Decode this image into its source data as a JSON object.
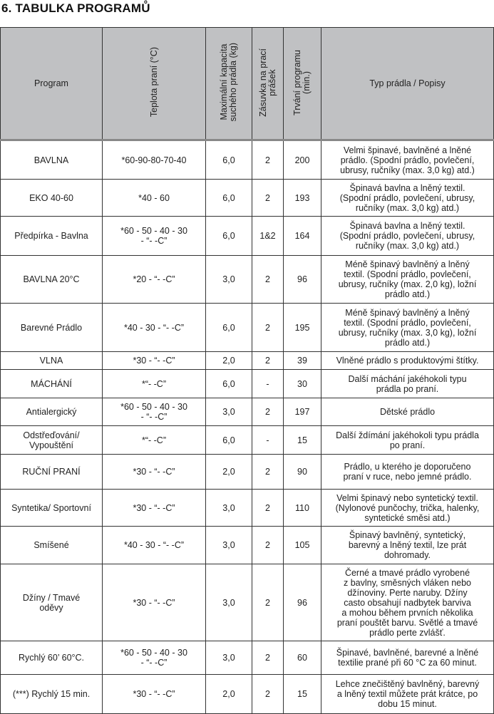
{
  "title": "6. TABULKA PROGRAMŮ",
  "columns": [
    "Program",
    "Teplota praní (°C)",
    "Maximální kapacita\nsuchého prádla (kg)",
    "Zásuvka na prací\nprášek",
    "Trvání programu\n(min.)",
    "Typ prádla / Popisy"
  ],
  "rows": [
    {
      "program": "BAVLNA",
      "temp": "*60-90-80-70-40",
      "capacity": "6,0",
      "drawer": "2",
      "duration": "200",
      "desc": "Velmi špinavé, bavlněné a lněné\nprádlo. (Spodní prádlo, povlečení,\nubrusy, ručníky (max. 3,0 kg) atd.)"
    },
    {
      "program": "EKO 40-60",
      "temp": "*40 - 60",
      "capacity": "6,0",
      "drawer": "2",
      "duration": "193",
      "desc": "Špinavá bavlna a lněný textil.\n(Spodní prádlo, povlečení, ubrusy,\nručníky (max. 3,0 kg) atd.)"
    },
    {
      "program": "Předpírka - Bavlna",
      "temp": "*60 - 50 - 40 - 30\n- “- -C”",
      "capacity": "6,0",
      "drawer": "1&2",
      "duration": "164",
      "desc": "Špinavá bavlna a lněný textil.\n(Spodní prádlo, povlečení, ubrusy,\nručníky (max. 3,0 kg) atd.)"
    },
    {
      "program": "BAVLNA 20°C",
      "temp": "*20 - “- -C”",
      "capacity": "3,0",
      "drawer": "2",
      "duration": "96",
      "desc": "Méně špinavý bavlněný a lněný\ntextil. (Spodní prádlo, povlečení,\nubrusy, ručníky (max. 2,0 kg), ložní\nprádlo atd.)"
    },
    {
      "program": "Barevné Prádlo",
      "temp": "*40 - 30 - “- -C”",
      "capacity": "6,0",
      "drawer": "2",
      "duration": "195",
      "desc": "Méně špinavý bavlněný a lněný\ntextil. (Spodní prádlo, povlečení,\nubrusy, ručníky (max. 3,0 kg), ložní\nprádlo atd.)"
    },
    {
      "program": "VLNA",
      "temp": "*30 - “- -C”",
      "capacity": "2,0",
      "drawer": "2",
      "duration": "39",
      "desc": "Vlněné prádlo s produktovými štítky."
    },
    {
      "program": "MÁCHÁNÍ",
      "temp": "*“- -C”",
      "capacity": "6,0",
      "drawer": "-",
      "duration": "30",
      "desc": "Další máchání jakéhokoli typu\nprádla po praní."
    },
    {
      "program": "Antialergický",
      "temp": "*60 - 50 - 40 - 30\n- “- -C”",
      "capacity": "3,0",
      "drawer": "2",
      "duration": "197",
      "desc": "Dětské prádlo"
    },
    {
      "program": "Odstřeďování/\nVypouštění",
      "temp": "*“- -C”",
      "capacity": "6,0",
      "drawer": "-",
      "duration": "15",
      "desc": "Další ždímání jakéhokoli typu prádla\npo praní."
    },
    {
      "program": "RUČNÍ PRANÍ",
      "temp": "*30 - “- -C”",
      "capacity": "2,0",
      "drawer": "2",
      "duration": "90",
      "desc": "Prádlo, u kterého je doporučeno\npraní v ruce, nebo jemné prádlo."
    },
    {
      "program": "Syntetika/ Sportovní",
      "temp": "*30 - “- -C”",
      "capacity": "3,0",
      "drawer": "2",
      "duration": "110",
      "desc": "Velmi špinavý nebo syntetický textil.\n(Nylonové punčochy, trička, halenky,\nsyntetické směsi atd.)"
    },
    {
      "program": "Smíšené",
      "temp": "*40 - 30 - “- -C”",
      "capacity": "3,0",
      "drawer": "2",
      "duration": "105",
      "desc": "Špinavý bavlněný, syntetický,\nbarevný a lněný textil, lze prát\ndohromady."
    },
    {
      "program": "Džíny / Tmavé\noděvy",
      "temp": "*30 - “- -C”",
      "capacity": "3,0",
      "drawer": "2",
      "duration": "96",
      "desc": "Černé a tmavé prádlo vyrobené\nz bavlny, směsných vláken nebo\ndžínoviny. Perte naruby. Džíny\ncasto obsahují nadbytek barviva\na mohou během prvních několika\npraní pouštět barvu. Světlé a tmavé\nprádlo perte zvlášť."
    },
    {
      "program": "Rychlý 60’ 60°C.",
      "temp": "*60 - 50 - 40 - 30\n- “- -C”",
      "capacity": "3,0",
      "drawer": "2",
      "duration": "60",
      "desc": "Špinavé, bavlněné, barevné a lněné\ntextilie prané při 60 °C za 60 minut."
    },
    {
      "program": "(***) Rychlý 15 min.",
      "temp": "*30 - “- -C”",
      "capacity": "2,0",
      "drawer": "2",
      "duration": "15",
      "desc": "Lehce znečištěný bavlněný, barevný\na lněný textil můžete prát krátce, po\ndobu 15 minut."
    }
  ],
  "colors": {
    "header_bg": "#c0c1c3",
    "border": "#333333"
  }
}
